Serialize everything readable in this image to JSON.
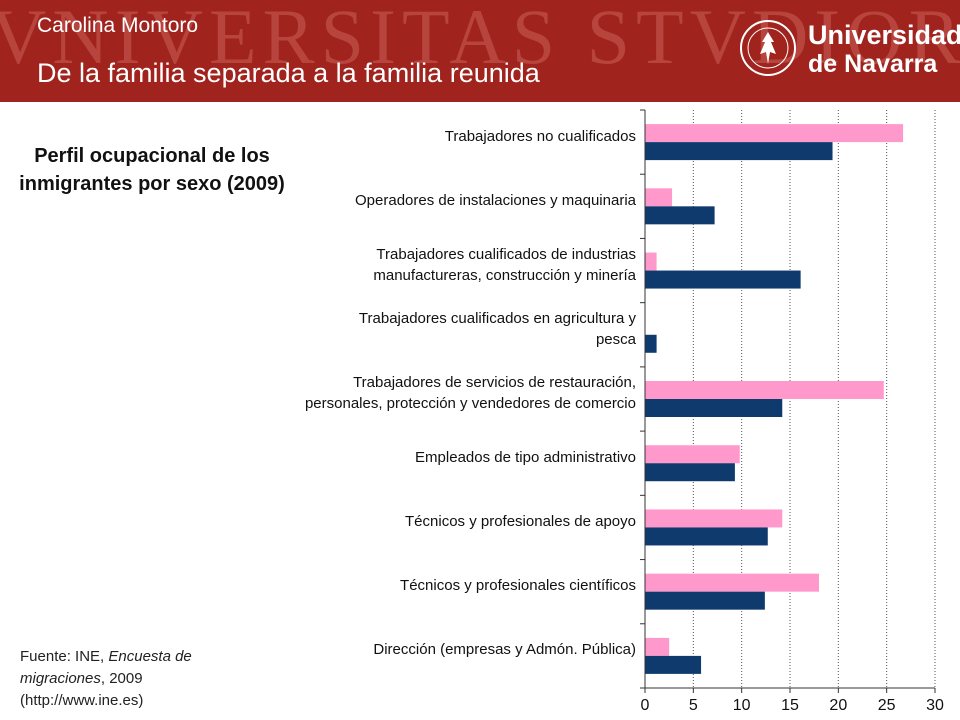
{
  "header": {
    "watermark": "VNIVERSITAS STVDIORVM",
    "author": "Carolina Montoro",
    "subtitle": "De la familia separada a la familia reunida",
    "logo_line1": "Universidad",
    "logo_line2": "de Navarra"
  },
  "source": {
    "prefix": "Fuente: INE, ",
    "title": "Encuesta de migraciones",
    "suffix": ", 2009",
    "url": "(http://www.ine.es)"
  },
  "colors": {
    "header_bg": "#a0231e",
    "series_pink": "#ff99cc",
    "series_navy": "#0f3a6e"
  },
  "chart_data": {
    "type": "bar",
    "orientation": "horizontal",
    "title": "Perfil ocupacional de los inmigrantes por sexo (2009)",
    "categories": [
      [
        "Trabajadores no cualificados"
      ],
      [
        "Operadores de instalaciones y maquinaria"
      ],
      [
        "Trabajadores cualificados de industrias",
        "manufactureras, construcción y minería"
      ],
      [
        "Trabajadores cualificados en agricultura y",
        "pesca"
      ],
      [
        "Trabajadores de servicios de restauración,",
        "personales, protección y vendedores de comercio"
      ],
      [
        "Empleados de tipo administrativo"
      ],
      [
        "Técnicos y profesionales de apoyo"
      ],
      [
        "Técnicos y profesionales científicos"
      ],
      [
        "Dirección (empresas y Admón. Pública)"
      ]
    ],
    "series": [
      {
        "color": "#ff99cc",
        "values": [
          26.7,
          2.8,
          1.2,
          0,
          24.7,
          9.8,
          14.2,
          18.0,
          2.5
        ]
      },
      {
        "color": "#0f3a6e",
        "values": [
          19.4,
          7.2,
          16.1,
          1.2,
          14.2,
          9.3,
          12.7,
          12.4,
          5.8
        ]
      }
    ],
    "xlim": [
      0,
      30
    ],
    "xticks": [
      "0",
      "5",
      "10",
      "15",
      "20",
      "25",
      "30"
    ],
    "grid": true,
    "legend": "none"
  }
}
